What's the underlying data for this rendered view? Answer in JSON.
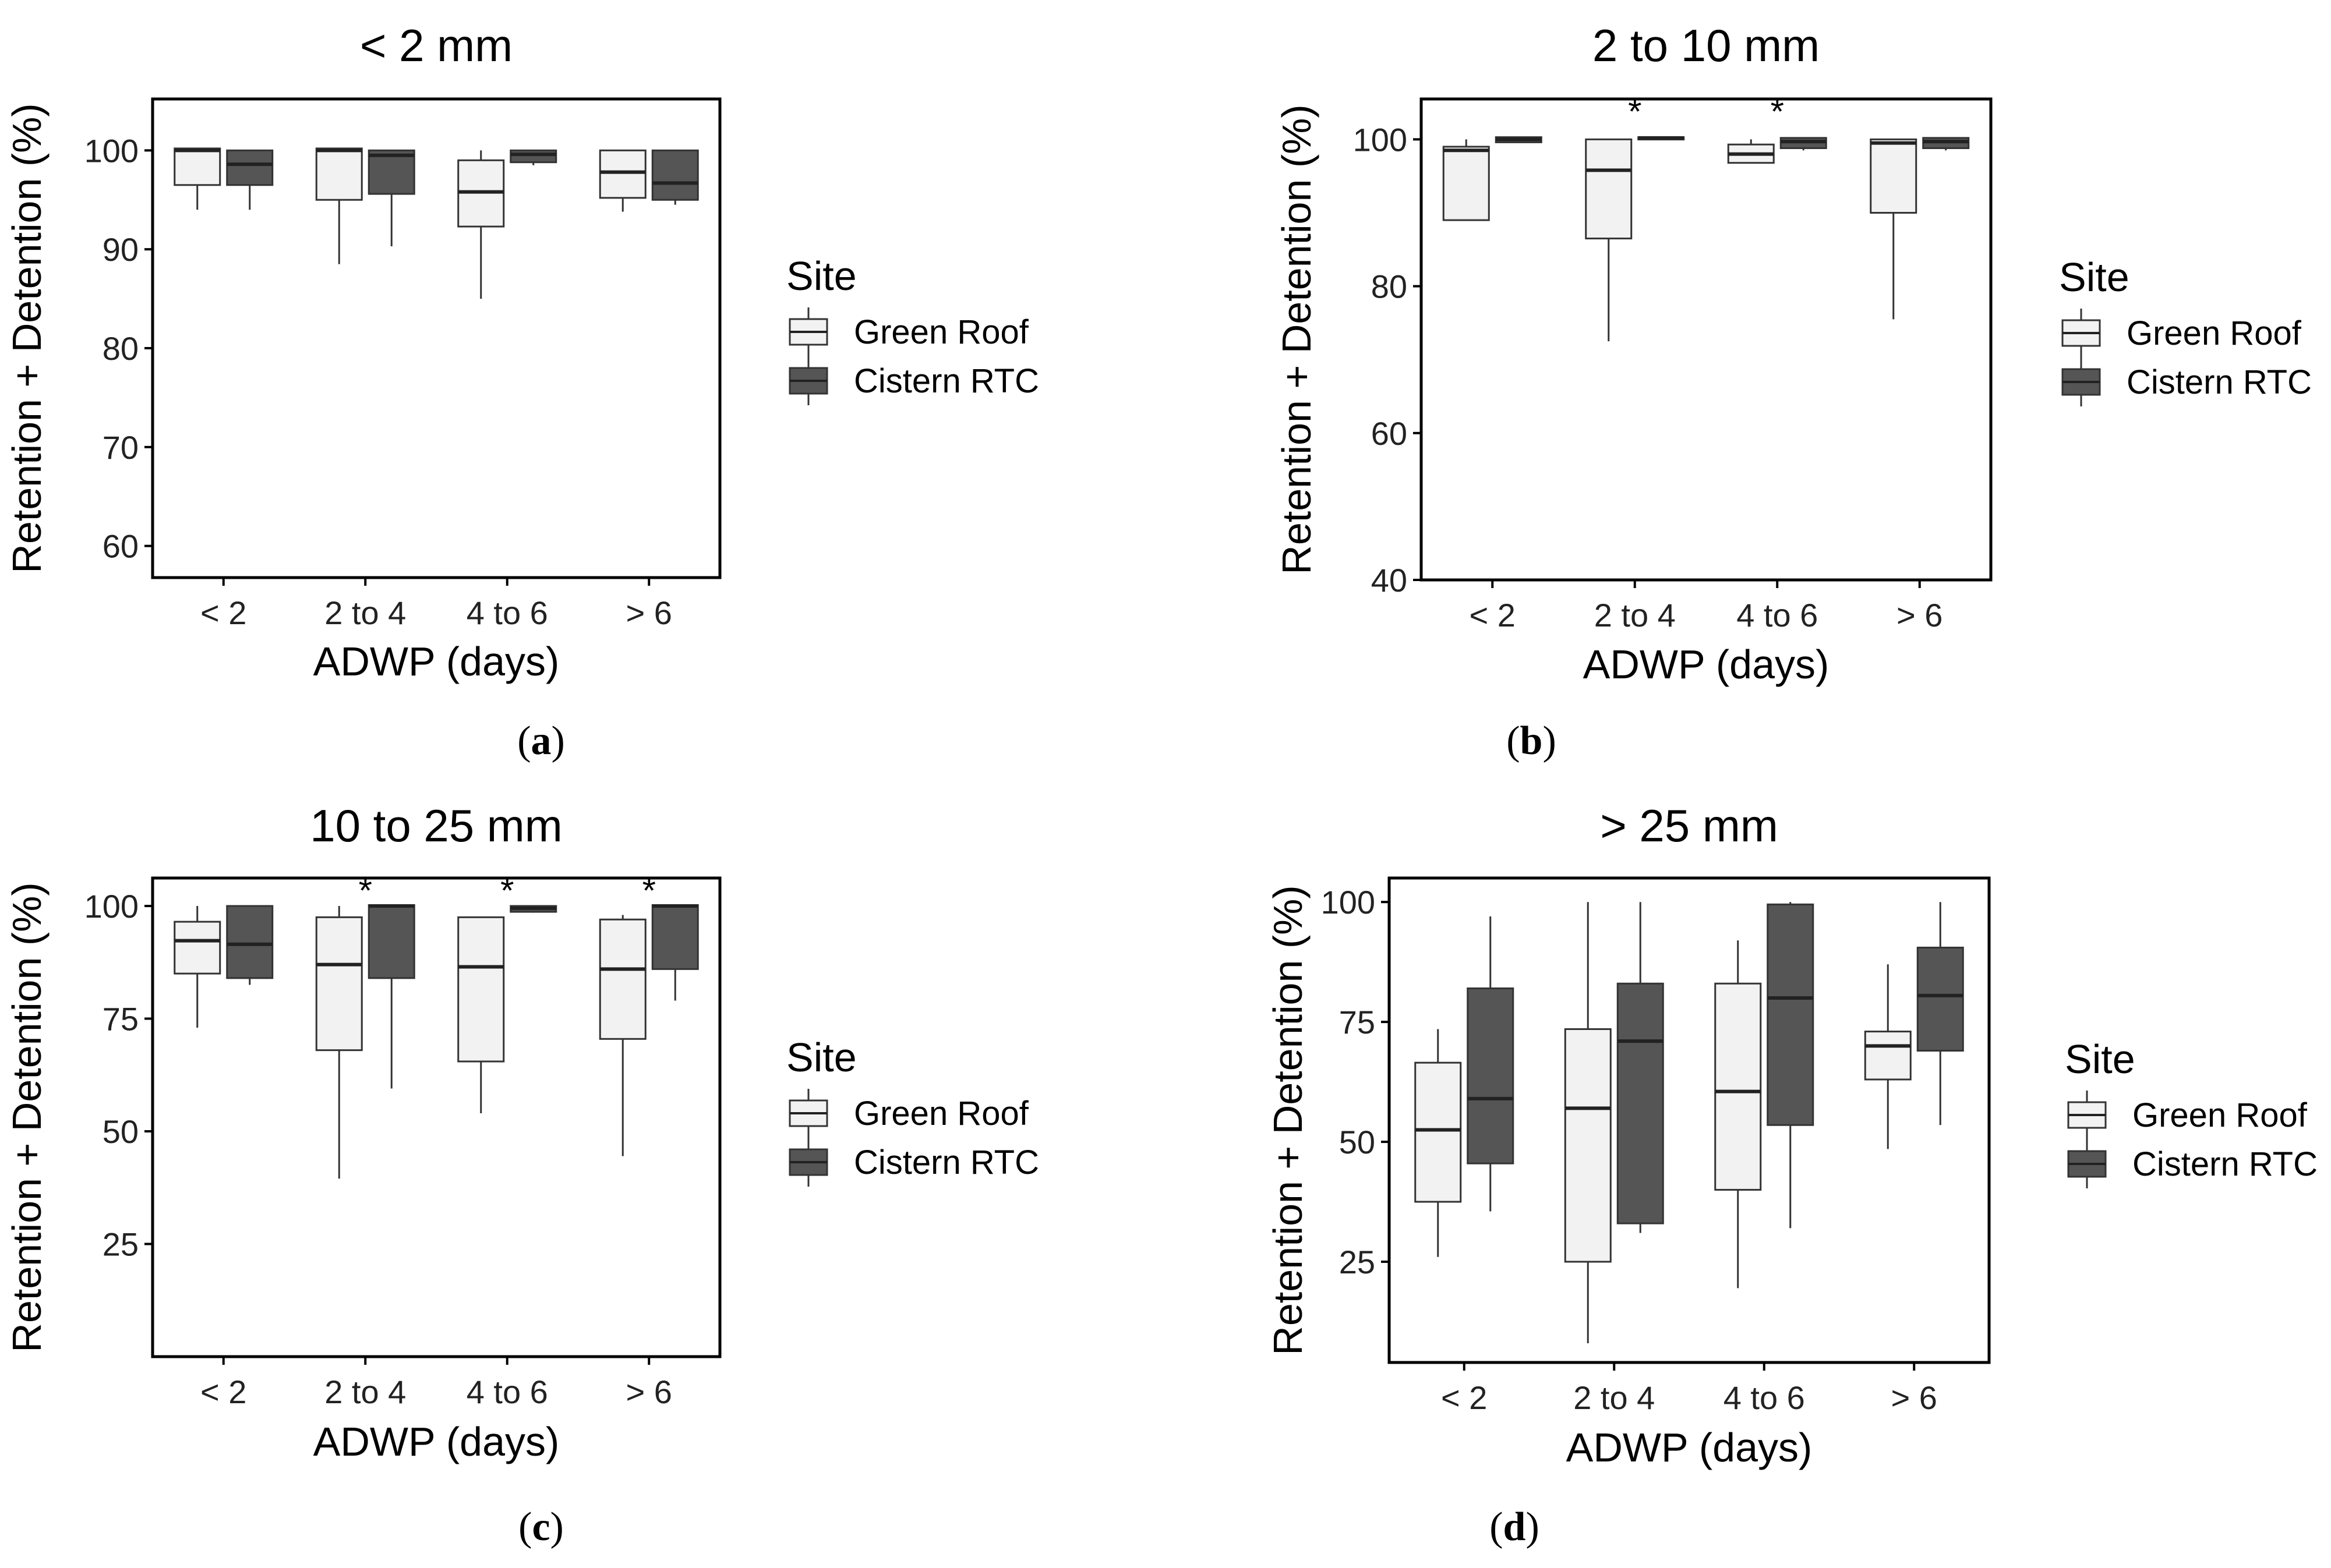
{
  "figure": {
    "legend_title": "Site",
    "series_names": [
      "Green Roof",
      "Cistern RTC"
    ],
    "colors": {
      "green_roof": "#f2f2f2",
      "cistern_rtc": "#555555",
      "outline": "#333333"
    },
    "x_axis_label": "ADWP (days)",
    "y_axis_label": "Retention + Detention (%)"
  },
  "chart_data": [
    {
      "type": "box",
      "panel_label": "a",
      "title": "< 2 mm",
      "xlabel": "ADWP (days)",
      "ylabel": "Retention + Detention (%)",
      "categories": [
        "< 2",
        "2 to 4",
        "4 to 6",
        "> 6"
      ],
      "yticks": [
        60,
        70,
        80,
        90,
        100
      ],
      "ylim": [
        56.8,
        105.2
      ],
      "significance": [
        false,
        false,
        false,
        false
      ],
      "series": [
        {
          "name": "Green Roof",
          "boxes": [
            {
              "min": 94,
              "q1": 96.5,
              "median": 100,
              "q3": 100.2,
              "max": 100.2
            },
            {
              "min": 88.5,
              "q1": 95,
              "median": 100,
              "q3": 100.2,
              "max": 100.2
            },
            {
              "min": 85,
              "q1": 92.3,
              "median": 95.8,
              "q3": 99,
              "max": 100
            },
            {
              "min": 93.8,
              "q1": 95.2,
              "median": 97.8,
              "q3": 100,
              "max": 100
            }
          ]
        },
        {
          "name": "Cistern RTC",
          "boxes": [
            {
              "min": 94,
              "q1": 96.5,
              "median": 98.6,
              "q3": 100,
              "max": 100
            },
            {
              "min": 90.3,
              "q1": 95.6,
              "median": 99.5,
              "q3": 100,
              "max": 100
            },
            {
              "min": 98.5,
              "q1": 98.8,
              "median": 99.6,
              "q3": 100,
              "max": 100
            },
            {
              "min": 94.5,
              "q1": 95,
              "median": 96.7,
              "q3": 100,
              "max": 100
            }
          ]
        }
      ]
    },
    {
      "type": "box",
      "panel_label": "b",
      "title": "2 to 10 mm",
      "xlabel": "ADWP (days)",
      "ylabel": "Retention + Detention (%)",
      "categories": [
        "< 2",
        "2 to 4",
        "4 to 6",
        "> 6"
      ],
      "yticks": [
        40,
        60,
        80,
        100
      ],
      "ylim": [
        40,
        105.5
      ],
      "significance": [
        false,
        true,
        true,
        false
      ],
      "series": [
        {
          "name": "Green Roof",
          "boxes": [
            {
              "min": 89,
              "q1": 89,
              "median": 98.5,
              "q3": 99,
              "max": 100
            },
            {
              "min": 72.5,
              "q1": 86.5,
              "median": 95.8,
              "q3": 100,
              "max": 100
            },
            {
              "min": 96.8,
              "q1": 96.8,
              "median": 98,
              "q3": 99.3,
              "max": 100
            },
            {
              "min": 75.5,
              "q1": 90,
              "median": 99.5,
              "q3": 100,
              "max": 100
            }
          ]
        },
        {
          "name": "Cistern RTC",
          "boxes": [
            {
              "min": 99.5,
              "q1": 99.6,
              "median": 100,
              "q3": 100.3,
              "max": 100.3
            },
            {
              "min": 100,
              "q1": 100,
              "median": 100.2,
              "q3": 100.3,
              "max": 100.3
            },
            {
              "min": 98.5,
              "q1": 98.8,
              "median": 99.7,
              "q3": 100.2,
              "max": 100.2
            },
            {
              "min": 98.5,
              "q1": 98.8,
              "median": 99.7,
              "q3": 100.2,
              "max": 100.2
            }
          ]
        }
      ]
    },
    {
      "type": "box",
      "panel_label": "c",
      "title": "10 to 25 mm",
      "xlabel": "ADWP (days)",
      "ylabel": "Retention + Detention (%)",
      "categories": [
        "< 2",
        "2 to 4",
        "4 to 6",
        "> 6"
      ],
      "yticks": [
        25,
        50,
        75,
        100
      ],
      "ylim": [
        0,
        106.2
      ],
      "significance": [
        false,
        true,
        true,
        true
      ],
      "series": [
        {
          "name": "Green Roof",
          "boxes": [
            {
              "min": 73,
              "q1": 85,
              "median": 92.3,
              "q3": 96.5,
              "max": 100
            },
            {
              "min": 39.5,
              "q1": 68,
              "median": 87,
              "q3": 97.5,
              "max": 100
            },
            {
              "min": 54,
              "q1": 65.5,
              "median": 86.5,
              "q3": 97.5,
              "max": 97.5
            },
            {
              "min": 44.5,
              "q1": 70.5,
              "median": 86,
              "q3": 97,
              "max": 98
            }
          ]
        },
        {
          "name": "Cistern RTC",
          "boxes": [
            {
              "min": 82.5,
              "q1": 84,
              "median": 91.5,
              "q3": 100,
              "max": 100
            },
            {
              "min": 59.5,
              "q1": 84,
              "median": 100,
              "q3": 100.2,
              "max": 100.2
            },
            {
              "min": 98.5,
              "q1": 98.7,
              "median": 99.5,
              "q3": 100,
              "max": 100
            },
            {
              "min": 79,
              "q1": 86,
              "median": 100,
              "q3": 100.2,
              "max": 100.2
            }
          ]
        }
      ]
    },
    {
      "type": "box",
      "panel_label": "d",
      "title": "> 25 mm",
      "xlabel": "ADWP (days)",
      "ylabel": "Retention + Detention (%)",
      "categories": [
        "< 2",
        "2 to 4",
        "4 to 6",
        "> 6"
      ],
      "yticks": [
        25,
        50,
        75,
        100
      ],
      "ylim": [
        4,
        105
      ],
      "significance": [
        false,
        false,
        false,
        false
      ],
      "series": [
        {
          "name": "Green Roof",
          "boxes": [
            {
              "min": 26,
              "q1": 37.5,
              "median": 52.5,
              "q3": 66.5,
              "max": 73.5
            },
            {
              "min": 8,
              "q1": 25,
              "median": 57,
              "q3": 73.5,
              "max": 100
            },
            {
              "min": 19.5,
              "q1": 40,
              "median": 60.5,
              "q3": 83,
              "max": 92
            },
            {
              "min": 48.5,
              "q1": 63,
              "median": 70,
              "q3": 73,
              "max": 87
            }
          ]
        },
        {
          "name": "Cistern RTC",
          "boxes": [
            {
              "min": 35.5,
              "q1": 45.5,
              "median": 59,
              "q3": 82,
              "max": 97
            },
            {
              "min": 31,
              "q1": 33,
              "median": 71,
              "q3": 83,
              "max": 100
            },
            {
              "min": 32,
              "q1": 53.5,
              "median": 80,
              "q3": 99.5,
              "max": 100
            },
            {
              "min": 53.5,
              "q1": 69,
              "median": 80.5,
              "q3": 90.5,
              "max": 100
            }
          ]
        }
      ]
    }
  ]
}
